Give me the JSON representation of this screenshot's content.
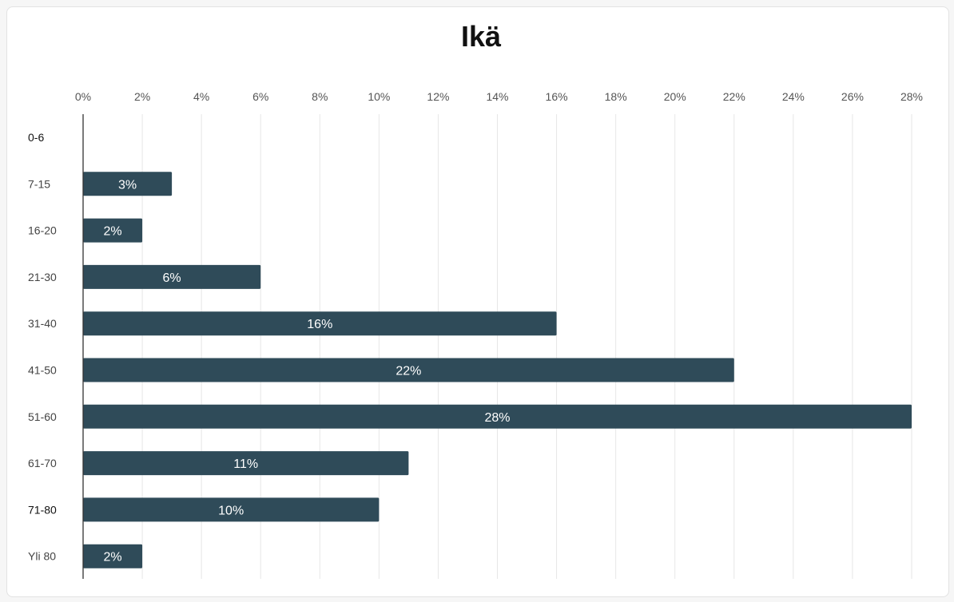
{
  "chart_data": {
    "type": "bar",
    "orientation": "horizontal",
    "title": "Ikä",
    "xlabel": "",
    "ylabel": "",
    "categories": [
      "0-6",
      "7-15",
      "16-20",
      "21-30",
      "31-40",
      "41-50",
      "51-60",
      "61-70",
      "71-80",
      "Yli 80"
    ],
    "values": [
      0,
      3,
      2,
      6,
      16,
      22,
      28,
      11,
      10,
      2
    ],
    "data_labels": [
      "",
      "3%",
      "2%",
      "6%",
      "16%",
      "22%",
      "28%",
      "11%",
      "10%",
      "2%"
    ],
    "xlim": [
      0,
      28
    ],
    "x_ticks": [
      "0%",
      "2%",
      "4%",
      "6%",
      "8%",
      "10%",
      "12%",
      "14%",
      "16%",
      "18%",
      "20%",
      "22%",
      "24%",
      "26%",
      "28%"
    ],
    "x_axis_position": "top",
    "grid": "vertical",
    "legend": "none",
    "colors": {
      "bar": "#2f4b59",
      "grid": "#e6e6e6",
      "axis": "#333333"
    }
  }
}
